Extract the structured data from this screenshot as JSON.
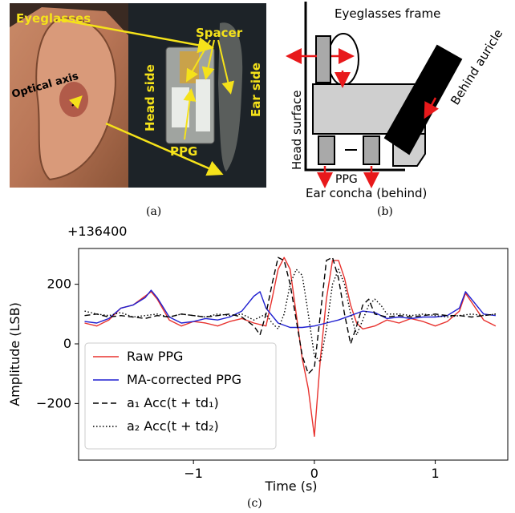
{
  "panel_a": {
    "labels": {
      "eyeglasses": "Eyeglasses",
      "optical_axis": "Optical axis",
      "spacer": "Spacer",
      "head_side": "Head side",
      "ear_side": "Ear side",
      "ppg": "PPG"
    },
    "caption": "(a)"
  },
  "panel_b": {
    "labels": {
      "frame": "Eyeglasses frame",
      "head_surface": "Head surface",
      "behind_auricle": "Behind auricle",
      "ppg": "PPG",
      "ear_concha": "Ear concha (behind)"
    },
    "caption": "(b)"
  },
  "chart_data": {
    "type": "line",
    "caption": "(c)",
    "offset_label": "+136400",
    "xlabel": "Time (s)",
    "ylabel": "Amplitude (LSB)",
    "xlim": [
      -1.95,
      1.6
    ],
    "ylim": [
      -390,
      320
    ],
    "xticks": [
      -1,
      0,
      1
    ],
    "xtick_labels": [
      "−1",
      "0",
      "1"
    ],
    "yticks": [
      -200,
      0,
      200
    ],
    "ytick_labels": [
      "−200",
      "0",
      "200"
    ],
    "legend": {
      "position": "lower-left",
      "entries": [
        {
          "label": "Raw PPG",
          "color": "#e8322e",
          "dash": "solid"
        },
        {
          "label": "MA-corrected PPG",
          "color": "#1f1fd0",
          "dash": "solid"
        },
        {
          "label": "a₁ Acc(t + td₁)",
          "color": "#000000",
          "dash": "dashed"
        },
        {
          "label": "a₂ Acc(t + td₂)",
          "color": "#000000",
          "dash": "dotted"
        }
      ]
    },
    "series": [
      {
        "name": "Raw PPG",
        "color": "#e8322e",
        "dash": "solid",
        "x": [
          -1.9,
          -1.8,
          -1.7,
          -1.6,
          -1.5,
          -1.4,
          -1.35,
          -1.3,
          -1.2,
          -1.1,
          -1.0,
          -0.9,
          -0.8,
          -0.7,
          -0.6,
          -0.5,
          -0.4,
          -0.35,
          -0.3,
          -0.25,
          -0.2,
          -0.15,
          -0.1,
          -0.05,
          0.0,
          0.05,
          0.1,
          0.15,
          0.2,
          0.25,
          0.3,
          0.35,
          0.4,
          0.5,
          0.6,
          0.7,
          0.8,
          0.9,
          1.0,
          1.1,
          1.2,
          1.25,
          1.3,
          1.4,
          1.5
        ],
        "y": [
          70,
          60,
          80,
          120,
          130,
          160,
          175,
          150,
          80,
          60,
          75,
          70,
          60,
          75,
          85,
          70,
          60,
          150,
          250,
          290,
          250,
          100,
          -50,
          -150,
          -310,
          -50,
          150,
          280,
          280,
          220,
          130,
          70,
          50,
          60,
          80,
          70,
          85,
          75,
          60,
          75,
          110,
          170,
          140,
          80,
          60
        ]
      },
      {
        "name": "MA-corrected PPG",
        "color": "#1f1fd0",
        "dash": "solid",
        "x": [
          -1.9,
          -1.8,
          -1.7,
          -1.6,
          -1.5,
          -1.4,
          -1.35,
          -1.3,
          -1.2,
          -1.1,
          -1.0,
          -0.9,
          -0.8,
          -0.7,
          -0.6,
          -0.5,
          -0.45,
          -0.4,
          -0.3,
          -0.2,
          -0.1,
          0.0,
          0.1,
          0.2,
          0.3,
          0.4,
          0.5,
          0.6,
          0.7,
          0.8,
          0.9,
          1.0,
          1.1,
          1.2,
          1.25,
          1.3,
          1.4,
          1.5
        ],
        "y": [
          75,
          70,
          85,
          120,
          130,
          155,
          180,
          155,
          90,
          70,
          75,
          85,
          80,
          90,
          110,
          160,
          175,
          120,
          70,
          55,
          55,
          60,
          70,
          80,
          95,
          110,
          105,
          85,
          90,
          85,
          90,
          90,
          95,
          120,
          175,
          150,
          100,
          95
        ]
      },
      {
        "name": "a₁ Acc(t + td₁)",
        "color": "#000000",
        "dash": "dashed",
        "x": [
          -1.9,
          -1.8,
          -1.7,
          -1.6,
          -1.5,
          -1.4,
          -1.3,
          -1.2,
          -1.1,
          -1.0,
          -0.9,
          -0.8,
          -0.7,
          -0.6,
          -0.5,
          -0.45,
          -0.4,
          -0.35,
          -0.3,
          -0.25,
          -0.2,
          -0.15,
          -0.1,
          -0.05,
          0.0,
          0.05,
          0.1,
          0.15,
          0.2,
          0.25,
          0.3,
          0.35,
          0.4,
          0.45,
          0.5,
          0.6,
          0.7,
          0.8,
          0.9,
          1.0,
          1.1,
          1.2,
          1.3,
          1.4,
          1.5
        ],
        "y": [
          95,
          100,
          90,
          95,
          90,
          85,
          95,
          90,
          100,
          95,
          90,
          95,
          100,
          90,
          60,
          30,
          100,
          200,
          290,
          280,
          200,
          80,
          -40,
          -100,
          -80,
          100,
          280,
          290,
          220,
          100,
          0,
          60,
          130,
          150,
          100,
          90,
          95,
          90,
          95,
          100,
          95,
          95,
          90,
          95,
          100
        ]
      },
      {
        "name": "a₂ Acc(t + td₂)",
        "color": "#000000",
        "dash": "dotted",
        "x": [
          -1.9,
          -1.8,
          -1.7,
          -1.6,
          -1.5,
          -1.4,
          -1.3,
          -1.2,
          -1.1,
          -1.0,
          -0.9,
          -0.8,
          -0.7,
          -0.6,
          -0.5,
          -0.4,
          -0.35,
          -0.3,
          -0.25,
          -0.2,
          -0.15,
          -0.1,
          -0.05,
          0.0,
          0.05,
          0.1,
          0.15,
          0.2,
          0.25,
          0.3,
          0.35,
          0.4,
          0.45,
          0.5,
          0.55,
          0.6,
          0.7,
          0.8,
          0.9,
          1.0,
          1.1,
          1.2,
          1.3,
          1.4,
          1.5
        ],
        "y": [
          110,
          100,
          95,
          105,
          90,
          95,
          100,
          90,
          100,
          95,
          90,
          100,
          95,
          100,
          80,
          100,
          70,
          50,
          100,
          200,
          250,
          230,
          100,
          -40,
          -60,
          50,
          200,
          250,
          200,
          100,
          30,
          80,
          130,
          150,
          130,
          100,
          100,
          95,
          100,
          95,
          90,
          95,
          100,
          95,
          100
        ]
      }
    ]
  }
}
